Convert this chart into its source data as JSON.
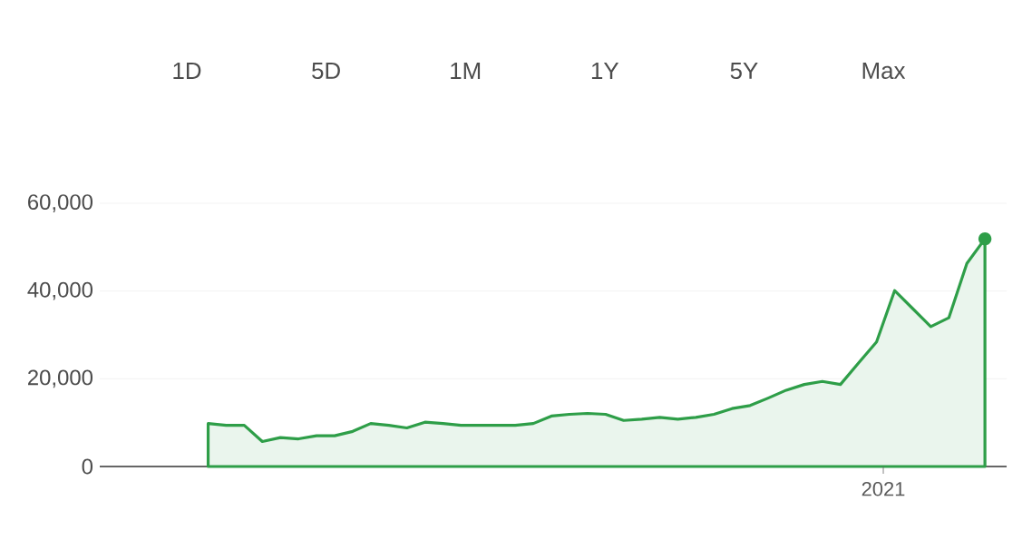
{
  "chart_data": {
    "type": "area",
    "annotations": [
      "1D",
      "5D",
      "1M",
      "1Y",
      "5Y",
      "Max",
      "2021"
    ],
    "categories": [
      null,
      null,
      null,
      null,
      null,
      null,
      null,
      null,
      null,
      null,
      null,
      null,
      null,
      null,
      null,
      null,
      null,
      null,
      null,
      null,
      null,
      null,
      null,
      null,
      null,
      null,
      null,
      null,
      null,
      null,
      null,
      null,
      null,
      null,
      null,
      null,
      null,
      null,
      null,
      null,
      null,
      null,
      null,
      null
    ],
    "ylim": [
      0,
      60000
    ],
    "yticks": [
      {
        "value": 0,
        "label": "0"
      },
      {
        "value": 20000,
        "label": "20,000"
      },
      {
        "value": 40000,
        "label": "40,000"
      },
      {
        "value": 60000,
        "label": "60,000"
      }
    ],
    "grid": "y",
    "series": [
      {
        "color": "#2e9e48",
        "values": [
          9800,
          9400,
          9400,
          5700,
          6600,
          6300,
          7000,
          7000,
          8000,
          9800,
          9400,
          8800,
          10100,
          9800,
          9400,
          9400,
          9400,
          9400,
          9800,
          11500,
          11900,
          12100,
          11900,
          10500,
          10800,
          11200,
          10800,
          11200,
          11900,
          13200,
          13900,
          15600,
          17400,
          18700,
          19400,
          18700,
          23600,
          28400,
          40100,
          36000,
          31900,
          33900,
          46300,
          51900
        ]
      }
    ]
  }
}
